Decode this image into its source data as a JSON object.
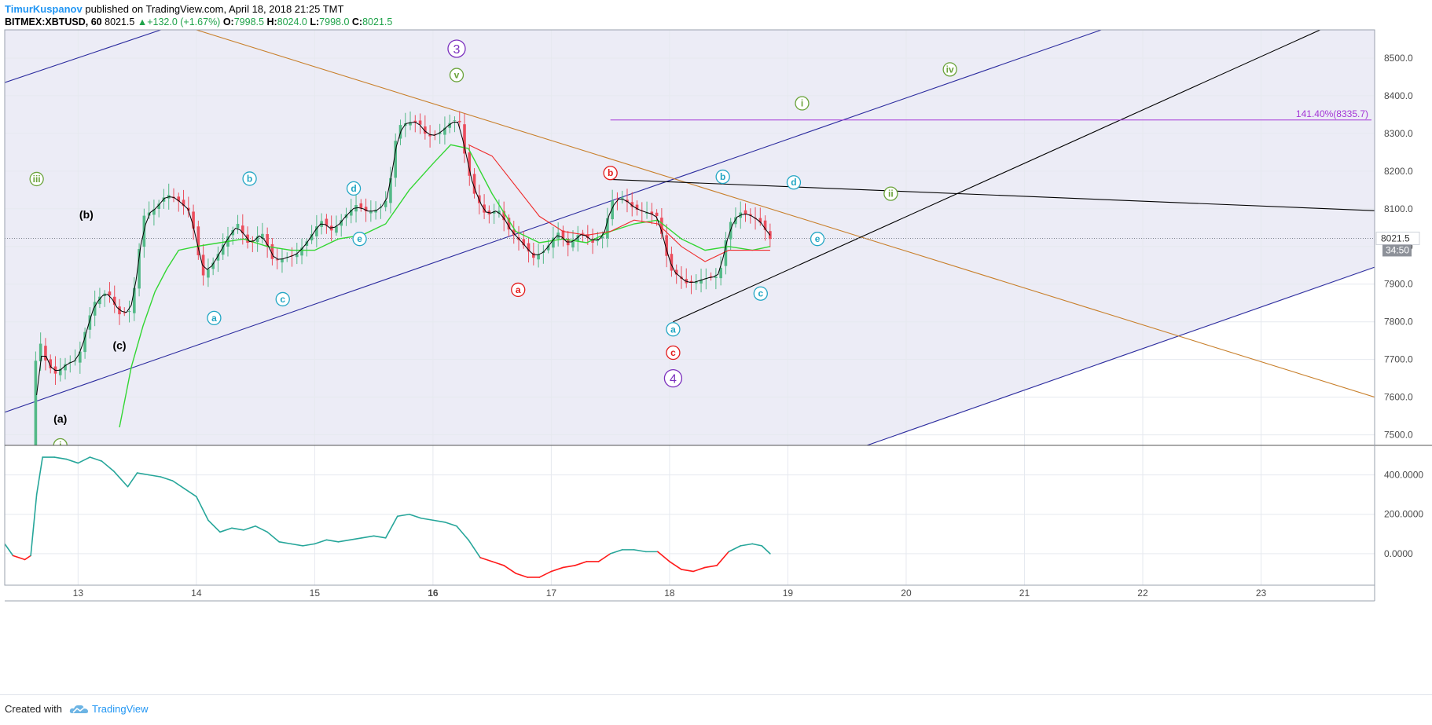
{
  "header": {
    "author": "TimurKuspanov",
    "published_text": "published on TradingView.com, April 18, 2018 21:25 TMT",
    "symbol": "BITMEX:XBTUSD, 60",
    "last": "8021.5",
    "change": "+132.0 (+1.67%)",
    "o_label": "O:",
    "o_value": "7998.5",
    "h_label": "H:",
    "h_value": "8024.0",
    "l_label": "L:",
    "l_value": "7998.0",
    "c_label": "C:",
    "c_value": "8021.5"
  },
  "footer": {
    "created_with": "Created with",
    "brand": "TradingView"
  },
  "colors": {
    "up": "#53b987",
    "down": "#eb4d5c",
    "ema_fast": "#000000",
    "ema_green": "#33d633",
    "ema_red": "#ef2c2c",
    "channel_blue": "#2b2b9e",
    "resistance_orange": "#c87f2a",
    "fib_purple": "#a335d6",
    "osc_up": "#26a69a",
    "osc_down": "#ff1a1a",
    "label_cyan": "#22a6c4",
    "label_green": "#6aa33a",
    "label_red": "#e31b1b",
    "label_purple": "#7b2fbe"
  },
  "chart_data": [
    {
      "type": "candlestick",
      "series_name": "BITMEX:XBTUSD, 60",
      "x_tick_labels": [
        "13",
        "14",
        "15",
        "16",
        "17",
        "18",
        "19",
        "20",
        "21",
        "22",
        "23"
      ],
      "x_ticks_days": [
        13,
        14,
        15,
        16,
        17,
        18,
        19,
        20,
        21,
        22,
        23
      ],
      "x_range_days": [
        12.38,
        23.96
      ],
      "y_tick_labels": [
        "8500.0",
        "8400.0",
        "8300.0",
        "8200.0",
        "8100.0",
        "8000.0",
        "7900.0",
        "7800.0",
        "7700.0",
        "7600.0",
        "7500.0"
      ],
      "y_ticks": [
        8500,
        8400,
        8300,
        8200,
        8100,
        8000,
        7900,
        7800,
        7700,
        7600,
        7500
      ],
      "y_range": [
        7472,
        8575
      ],
      "last_price_label": "8021.5",
      "last_price": 8021.5,
      "countdown_label": "34:50",
      "shaded_channel_color": "#ececf6",
      "close_path": [
        [
          12.6,
          7280
        ],
        [
          12.65,
          7780
        ],
        [
          12.72,
          7700
        ],
        [
          12.8,
          7660
        ],
        [
          12.9,
          7690
        ],
        [
          13.0,
          7700
        ],
        [
          13.08,
          7800
        ],
        [
          13.15,
          7860
        ],
        [
          13.25,
          7880
        ],
        [
          13.35,
          7820
        ],
        [
          13.45,
          7830
        ],
        [
          13.5,
          7950
        ],
        [
          13.55,
          8080
        ],
        [
          13.65,
          8100
        ],
        [
          13.75,
          8140
        ],
        [
          13.85,
          8120
        ],
        [
          13.95,
          8090
        ],
        [
          14.05,
          7920
        ],
        [
          14.15,
          7960
        ],
        [
          14.25,
          8020
        ],
        [
          14.35,
          8060
        ],
        [
          14.45,
          8000
        ],
        [
          14.55,
          8040
        ],
        [
          14.65,
          7960
        ],
        [
          14.75,
          7970
        ],
        [
          14.85,
          7980
        ],
        [
          14.95,
          8020
        ],
        [
          15.05,
          8070
        ],
        [
          15.15,
          8040
        ],
        [
          15.25,
          8080
        ],
        [
          15.35,
          8110
        ],
        [
          15.45,
          8090
        ],
        [
          15.55,
          8100
        ],
        [
          15.62,
          8130
        ],
        [
          15.7,
          8320
        ],
        [
          15.8,
          8330
        ],
        [
          15.88,
          8330
        ],
        [
          15.95,
          8290
        ],
        [
          16.05,
          8300
        ],
        [
          16.15,
          8330
        ],
        [
          16.22,
          8340
        ],
        [
          16.28,
          8220
        ],
        [
          16.35,
          8140
        ],
        [
          16.45,
          8080
        ],
        [
          16.55,
          8100
        ],
        [
          16.65,
          8040
        ],
        [
          16.75,
          8010
        ],
        [
          16.85,
          7970
        ],
        [
          16.95,
          7990
        ],
        [
          17.05,
          8040
        ],
        [
          17.15,
          8000
        ],
        [
          17.25,
          8040
        ],
        [
          17.35,
          8010
        ],
        [
          17.45,
          8030
        ],
        [
          17.5,
          8120
        ],
        [
          17.6,
          8130
        ],
        [
          17.7,
          8100
        ],
        [
          17.8,
          8090
        ],
        [
          17.9,
          8080
        ],
        [
          18.0,
          7940
        ],
        [
          18.08,
          7920
        ],
        [
          18.15,
          7900
        ],
        [
          18.25,
          7910
        ],
        [
          18.35,
          7920
        ],
        [
          18.42,
          7920
        ],
        [
          18.5,
          8060
        ],
        [
          18.6,
          8090
        ],
        [
          18.7,
          8080
        ],
        [
          18.78,
          8060
        ],
        [
          18.85,
          8020
        ]
      ],
      "ema_green_path": [
        [
          13.35,
          7520
        ],
        [
          13.45,
          7680
        ],
        [
          13.55,
          7790
        ],
        [
          13.65,
          7880
        ],
        [
          13.75,
          7940
        ],
        [
          13.85,
          7990
        ],
        [
          14.0,
          8000
        ],
        [
          14.2,
          8010
        ],
        [
          14.4,
          8020
        ],
        [
          14.6,
          8000
        ],
        [
          14.8,
          7990
        ],
        [
          15.0,
          7990
        ],
        [
          15.2,
          8020
        ],
        [
          15.4,
          8030
        ],
        [
          15.6,
          8060
        ],
        [
          15.8,
          8150
        ],
        [
          16.0,
          8220
        ],
        [
          16.15,
          8270
        ],
        [
          16.3,
          8260
        ],
        [
          16.5,
          8140
        ],
        [
          16.7,
          8040
        ],
        [
          16.9,
          8010
        ],
        [
          17.1,
          8020
        ],
        [
          17.3,
          8010
        ],
        [
          17.5,
          8040
        ],
        [
          17.7,
          8060
        ],
        [
          17.9,
          8070
        ],
        [
          18.1,
          8020
        ],
        [
          18.3,
          7990
        ],
        [
          18.5,
          8000
        ],
        [
          18.7,
          7990
        ],
        [
          18.85,
          8000
        ]
      ],
      "ema_red_path": [
        [
          16.3,
          8270
        ],
        [
          16.5,
          8240
        ],
        [
          16.7,
          8160
        ],
        [
          16.9,
          8080
        ],
        [
          17.1,
          8040
        ],
        [
          17.3,
          8030
        ],
        [
          17.5,
          8040
        ],
        [
          17.7,
          8070
        ],
        [
          17.9,
          8060
        ],
        [
          18.1,
          8000
        ],
        [
          18.3,
          7960
        ],
        [
          18.5,
          7990
        ],
        [
          18.7,
          7990
        ],
        [
          18.85,
          7990
        ]
      ],
      "elliott_labels": [
        {
          "text": "3",
          "x": 16.2,
          "y": 8525,
          "color": "purple",
          "size": "big"
        },
        {
          "text": "v",
          "x": 16.2,
          "y": 8455,
          "color": "green"
        },
        {
          "text": "iii",
          "x": 12.65,
          "y": 8179,
          "color": "green"
        },
        {
          "text": "iv",
          "x": 20.37,
          "y": 8470,
          "color": "green"
        },
        {
          "text": "i",
          "x": 19.12,
          "y": 8380,
          "color": "green"
        },
        {
          "text": "ii",
          "x": 19.87,
          "y": 8140,
          "color": "green"
        },
        {
          "text": "b",
          "x": 14.45,
          "y": 8180,
          "color": "cyan"
        },
        {
          "text": "d",
          "x": 15.33,
          "y": 8154,
          "color": "cyan"
        },
        {
          "text": "e",
          "x": 15.38,
          "y": 8020,
          "color": "cyan"
        },
        {
          "text": "a",
          "x": 14.15,
          "y": 7810,
          "color": "cyan"
        },
        {
          "text": "c",
          "x": 14.73,
          "y": 7860,
          "color": "cyan"
        },
        {
          "text": "a",
          "x": 16.72,
          "y": 7885,
          "color": "red"
        },
        {
          "text": "b",
          "x": 17.5,
          "y": 8195,
          "color": "red"
        },
        {
          "text": "b",
          "x": 18.45,
          "y": 8185,
          "color": "cyan"
        },
        {
          "text": "d",
          "x": 19.05,
          "y": 8170,
          "color": "cyan"
        },
        {
          "text": "e",
          "x": 19.25,
          "y": 8020,
          "color": "cyan"
        },
        {
          "text": "c",
          "x": 18.77,
          "y": 7875,
          "color": "cyan"
        },
        {
          "text": "a",
          "x": 18.03,
          "y": 7780,
          "color": "cyan"
        },
        {
          "text": "c",
          "x": 18.03,
          "y": 7718,
          "color": "red"
        },
        {
          "text": "4",
          "x": 18.03,
          "y": 7650,
          "color": "purple",
          "size": "big"
        },
        {
          "text": "i",
          "x": 12.85,
          "y": 7472,
          "color": "green",
          "clip": true
        }
      ],
      "wave_text_labels": [
        {
          "text": "(b)",
          "x": 13.07,
          "y": 8085
        },
        {
          "text": "(c)",
          "x": 13.35,
          "y": 7738
        },
        {
          "text": "(a)",
          "x": 12.85,
          "y": 7543
        }
      ],
      "fib_level": {
        "label": "141.40%(8335.7)",
        "value": 8335.7,
        "x_start": 17.5
      },
      "trend_lines": [
        {
          "name": "channel-upper-1",
          "color": "blue",
          "points": [
            [
              12.38,
              8435
            ],
            [
              13.7,
              8575
            ]
          ]
        },
        {
          "name": "channel-middle",
          "color": "blue",
          "points": [
            [
              12.38,
              7560
            ],
            [
              18.0,
              8175
            ],
            [
              21.65,
              8575
            ]
          ]
        },
        {
          "name": "channel-lower",
          "color": "blue",
          "points": [
            [
              19.65,
              7470
            ],
            [
              23.96,
              7945
            ]
          ]
        },
        {
          "name": "resistance",
          "color": "orange",
          "points": [
            [
              14.0,
              8575
            ],
            [
              23.96,
              7600
            ]
          ]
        },
        {
          "name": "black-support",
          "color": "black",
          "points": [
            [
              18.03,
              7800
            ],
            [
              23.5,
              8575
            ]
          ]
        },
        {
          "name": "black-resistance",
          "color": "black",
          "points": [
            [
              17.5,
              8178
            ],
            [
              23.96,
              8095
            ]
          ]
        }
      ]
    },
    {
      "type": "line",
      "series_name": "oscillator",
      "y_tick_labels": [
        "400.0000",
        "200.0000",
        "0.0000"
      ],
      "y_ticks": [
        400,
        200,
        0
      ],
      "y_range": [
        -160,
        550
      ],
      "values": [
        [
          12.38,
          50
        ],
        [
          12.45,
          -10
        ],
        [
          12.55,
          -30
        ],
        [
          12.6,
          -10
        ],
        [
          12.65,
          300
        ],
        [
          12.7,
          490
        ],
        [
          12.8,
          490
        ],
        [
          12.9,
          480
        ],
        [
          13.0,
          460
        ],
        [
          13.1,
          490
        ],
        [
          13.2,
          470
        ],
        [
          13.3,
          420
        ],
        [
          13.42,
          340
        ],
        [
          13.5,
          410
        ],
        [
          13.6,
          400
        ],
        [
          13.7,
          390
        ],
        [
          13.8,
          370
        ],
        [
          13.9,
          330
        ],
        [
          14.0,
          290
        ],
        [
          14.1,
          170
        ],
        [
          14.2,
          110
        ],
        [
          14.3,
          130
        ],
        [
          14.4,
          120
        ],
        [
          14.5,
          140
        ],
        [
          14.6,
          110
        ],
        [
          14.7,
          60
        ],
        [
          14.8,
          50
        ],
        [
          14.9,
          40
        ],
        [
          15.0,
          50
        ],
        [
          15.1,
          70
        ],
        [
          15.2,
          60
        ],
        [
          15.3,
          70
        ],
        [
          15.4,
          80
        ],
        [
          15.5,
          90
        ],
        [
          15.6,
          80
        ],
        [
          15.7,
          190
        ],
        [
          15.8,
          200
        ],
        [
          15.9,
          180
        ],
        [
          16.0,
          170
        ],
        [
          16.1,
          160
        ],
        [
          16.2,
          140
        ],
        [
          16.3,
          70
        ],
        [
          16.4,
          -20
        ],
        [
          16.5,
          -40
        ],
        [
          16.6,
          -60
        ],
        [
          16.7,
          -100
        ],
        [
          16.8,
          -120
        ],
        [
          16.9,
          -120
        ],
        [
          17.0,
          -90
        ],
        [
          17.1,
          -70
        ],
        [
          17.2,
          -60
        ],
        [
          17.3,
          -40
        ],
        [
          17.4,
          -40
        ],
        [
          17.5,
          0
        ],
        [
          17.6,
          20
        ],
        [
          17.7,
          20
        ],
        [
          17.8,
          10
        ],
        [
          17.9,
          10
        ],
        [
          18.0,
          -40
        ],
        [
          18.1,
          -80
        ],
        [
          18.2,
          -90
        ],
        [
          18.3,
          -70
        ],
        [
          18.4,
          -60
        ],
        [
          18.5,
          10
        ],
        [
          18.6,
          40
        ],
        [
          18.7,
          50
        ],
        [
          18.78,
          40
        ],
        [
          18.85,
          0
        ]
      ]
    }
  ]
}
